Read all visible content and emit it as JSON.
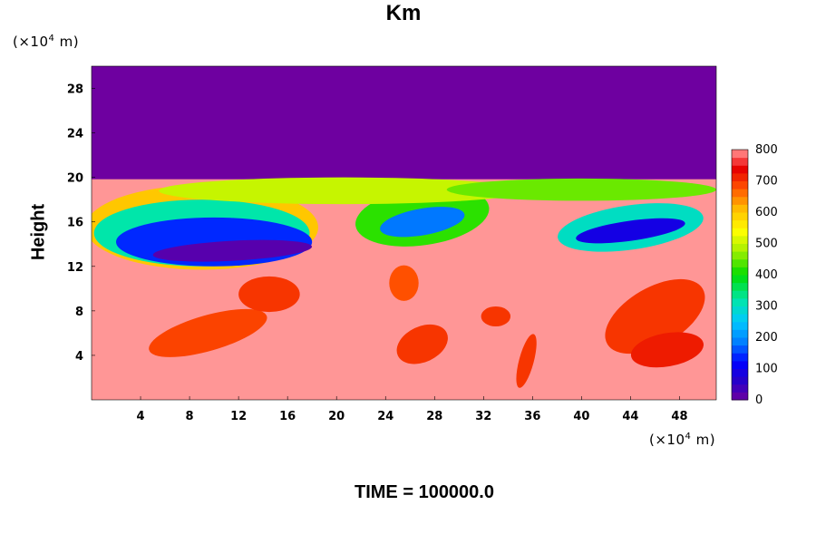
{
  "chart_data": {
    "type": "heatmap",
    "title": "Km",
    "ylabel": "Height",
    "x_unit": {
      "prefix": "(×10",
      "exp": "4",
      "suffix": " m)"
    },
    "y_unit": {
      "prefix": "(×10",
      "exp": "4",
      "suffix": " m)"
    },
    "xlim": [
      0,
      51
    ],
    "ylim": [
      0,
      30
    ],
    "x_ticks": [
      "4",
      "8",
      "12",
      "16",
      "20",
      "24",
      "28",
      "32",
      "36",
      "40",
      "44",
      "48"
    ],
    "y_ticks": [
      "4",
      "8",
      "12",
      "16",
      "20",
      "24",
      "28"
    ],
    "colorbar": {
      "min": 0,
      "max": 800,
      "step": 25,
      "labels": [
        "0",
        "100",
        "200",
        "300",
        "400",
        "500",
        "600",
        "700",
        "800"
      ]
    },
    "field_description_values": {
      "background_lower": 800,
      "upper_layer_height_min": 20,
      "upper_layer_value": 0
    }
  },
  "footer": {
    "time_label": "TIME = 100000.0"
  }
}
